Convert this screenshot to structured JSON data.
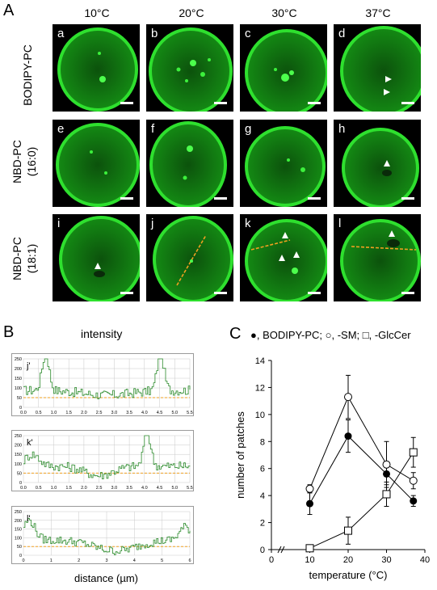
{
  "panel_A": {
    "letter": "A",
    "temperatures": [
      "10°C",
      "20°C",
      "30°C",
      "37°C"
    ],
    "row_labels": [
      [
        "BODIPY-PC"
      ],
      [
        "NBD-PC",
        "(16:0)"
      ],
      [
        "NBD-PC",
        "(18:1)"
      ]
    ],
    "cell_letters": [
      "a",
      "b",
      "c",
      "d",
      "e",
      "f",
      "g",
      "h",
      "i",
      "j",
      "k",
      "l"
    ],
    "colors": {
      "membrane": "#22d022",
      "background": "#000000",
      "scale_bar": "#ffffff",
      "line_scan": "#f0a020"
    }
  },
  "panel_B": {
    "letter": "B",
    "title": "intensity",
    "xlabel": "distance (µm)",
    "plots": [
      {
        "label": "j'",
        "yticks": [
          "250",
          "200",
          "150",
          "100",
          "50",
          "0"
        ],
        "xticks": [
          "0.0",
          "0.5",
          "1.0",
          "1.5",
          "2.0",
          "2.5",
          "3.0",
          "3.5",
          "4.0",
          "4.5",
          "5.0",
          "5.5"
        ]
      },
      {
        "label": "k'",
        "yticks": [
          "250",
          "200",
          "150",
          "100",
          "50",
          "0"
        ],
        "xticks": [
          "0.0",
          "0.5",
          "1.0",
          "1.5",
          "2.0",
          "2.5",
          "3.0",
          "3.5",
          "4.0",
          "4.5",
          "5.0",
          "5.5"
        ]
      },
      {
        "label": "l'",
        "yticks": [
          "250",
          "200",
          "150",
          "100",
          "50",
          "0"
        ],
        "xticks": [
          "0",
          "1",
          "2",
          "3",
          "4",
          "5",
          "6"
        ]
      }
    ],
    "colors": {
      "trace": "#2a8a2a",
      "threshold": "#f0a020",
      "grid": "#c8c8c8"
    }
  },
  "panel_C": {
    "letter": "C",
    "legend": "●, BODIPY-PC; ○, -SM; □, -GlcCer",
    "chart_data": {
      "type": "line",
      "xlabel": "temperature (°C)",
      "ylabel": "number of patches",
      "xlim": [
        0,
        40
      ],
      "ylim": [
        0,
        14
      ],
      "xticks": [
        "0",
        "10",
        "20",
        "30",
        "40"
      ],
      "yticks": [
        "0",
        "2",
        "4",
        "6",
        "8",
        "10",
        "12",
        "14"
      ],
      "x": [
        10,
        20,
        30,
        37
      ],
      "series": [
        {
          "name": "BODIPY-PC",
          "marker": "filled-circle",
          "values": [
            3.4,
            8.4,
            5.6,
            3.6
          ],
          "errors": [
            0.8,
            1.2,
            0.8,
            0.4
          ]
        },
        {
          "name": "-SM",
          "marker": "open-circle",
          "values": [
            4.5,
            11.3,
            6.3,
            5.1
          ],
          "errors": [
            0.3,
            1.6,
            1.7,
            0.6
          ]
        },
        {
          "name": "-GlcCer",
          "marker": "open-square",
          "values": [
            0.1,
            1.4,
            4.1,
            7.2
          ],
          "errors": [
            0.1,
            1.0,
            0.9,
            1.1
          ]
        }
      ]
    }
  }
}
